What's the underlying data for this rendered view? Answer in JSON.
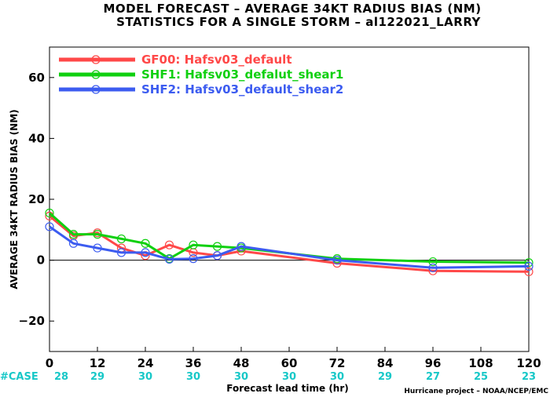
{
  "chart_data": {
    "type": "line",
    "title": "MODEL FORECAST – AVERAGE 34KT RADIUS BIAS (NM)",
    "subtitle": "STATISTICS FOR A SINGLE STORM – al122021_LARRY",
    "xlabel": "Forecast lead time (hr)",
    "ylabel": "AVERAGE 34KT RADIUS BIAS (NM)",
    "xlim": [
      0,
      120
    ],
    "ylim": [
      -30,
      70
    ],
    "x_ticks": [
      "0",
      "12",
      "24",
      "36",
      "48",
      "60",
      "72",
      "84",
      "96",
      "108",
      "120"
    ],
    "y_ticks": [
      "60",
      "40",
      "20",
      "0",
      "−20"
    ],
    "grid": false,
    "legend_position": "top-left",
    "series": [
      {
        "name": "GF00: Hafsv03_default",
        "color": "#ff4848",
        "x": [
          0,
          6,
          12,
          18,
          24,
          30,
          36,
          42,
          48,
          72,
          96,
          120
        ],
        "y": [
          14.5,
          8.0,
          9.0,
          4.0,
          1.5,
          5.0,
          2.5,
          1.5,
          3.0,
          -1.0,
          -3.5,
          -3.8
        ]
      },
      {
        "name": "SHF1: Hafsv03_defalut_shear1",
        "color": "#10d010",
        "x": [
          0,
          6,
          12,
          18,
          24,
          30,
          36,
          42,
          48,
          72,
          96,
          120
        ],
        "y": [
          15.5,
          8.5,
          8.5,
          7.0,
          5.5,
          0.5,
          5.0,
          4.5,
          4.0,
          0.5,
          -0.5,
          -0.8
        ]
      },
      {
        "name": "SHF2: Hafsv03_default_shear2",
        "color": "#3c5cf0",
        "x": [
          0,
          6,
          12,
          18,
          24,
          30,
          36,
          42,
          48,
          72,
          96,
          120
        ],
        "y": [
          11.0,
          5.5,
          4.0,
          2.5,
          2.5,
          0.3,
          0.5,
          1.5,
          4.5,
          0.0,
          -2.5,
          -2.0
        ]
      }
    ],
    "cases_label": "#CASE",
    "cases": [
      {
        "hour": 0,
        "count": "28"
      },
      {
        "hour": 12,
        "count": "29"
      },
      {
        "hour": 24,
        "count": "30"
      },
      {
        "hour": 36,
        "count": "30"
      },
      {
        "hour": 48,
        "count": "30"
      },
      {
        "hour": 60,
        "count": "30"
      },
      {
        "hour": 72,
        "count": "30"
      },
      {
        "hour": 84,
        "count": "29"
      },
      {
        "hour": 96,
        "count": "27"
      },
      {
        "hour": 108,
        "count": "25"
      },
      {
        "hour": 120,
        "count": "23"
      }
    ],
    "credit": "Hurricane project – NOAA/NCEP/EMC"
  },
  "colors": {
    "case_text": "#18c8c8",
    "zero_line": "#000000"
  }
}
